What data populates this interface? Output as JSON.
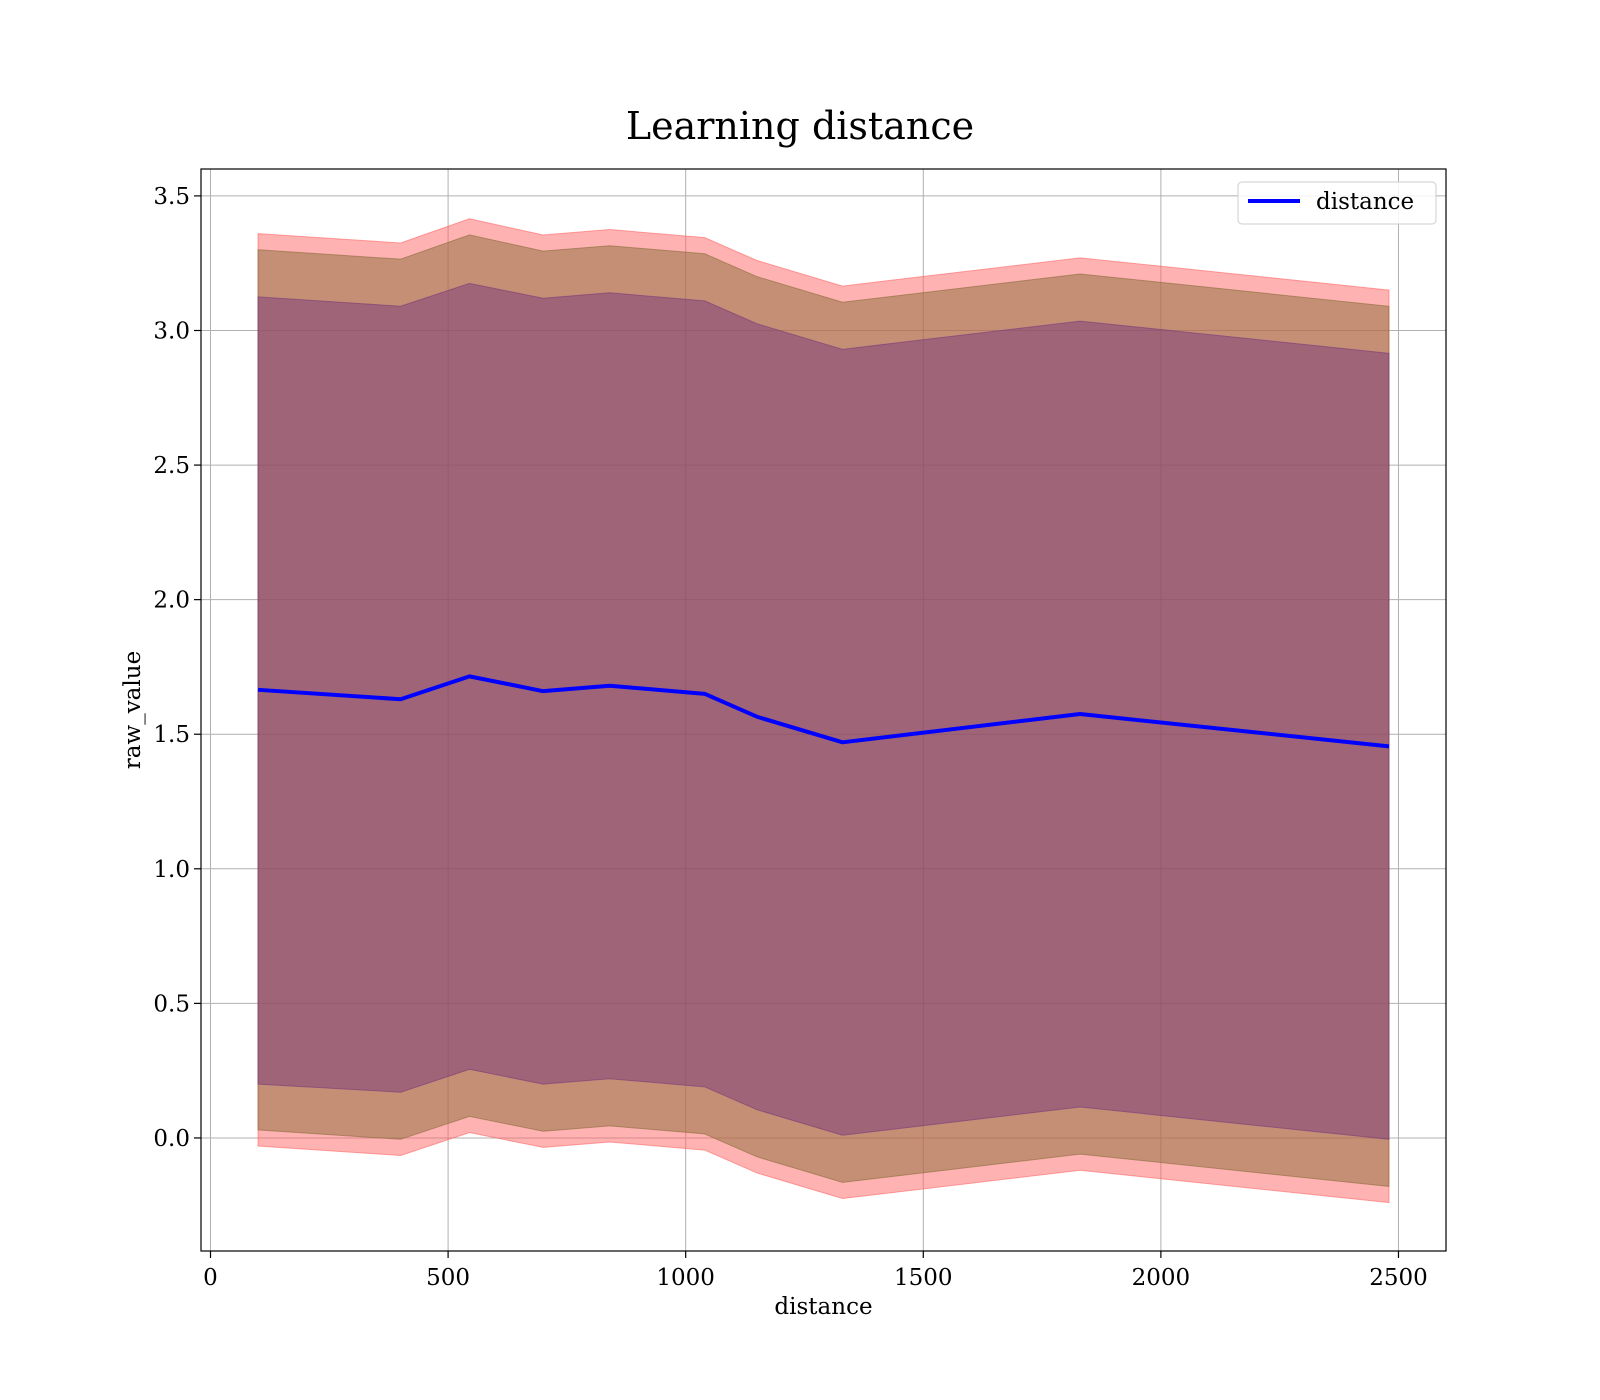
{
  "chart_data": {
    "type": "line",
    "title": "Learning distance",
    "xlabel": "distance",
    "ylabel": "raw_value",
    "xlim": [
      -20,
      2600
    ],
    "ylim": [
      -0.42,
      3.6
    ],
    "xticks": [
      0,
      500,
      1000,
      1500,
      2000,
      2500
    ],
    "xtick_labels": [
      "0",
      "500",
      "1000",
      "1500",
      "2000",
      "2500"
    ],
    "yticks": [
      0.0,
      0.5,
      1.0,
      1.5,
      2.0,
      2.5,
      3.0,
      3.5
    ],
    "ytick_labels": [
      "0.0",
      "0.5",
      "1.0",
      "1.5",
      "2.0",
      "2.5",
      "3.0",
      "3.5"
    ],
    "grid": true,
    "legend_position": "top-right",
    "x": [
      100,
      400,
      545,
      700,
      840,
      1040,
      1150,
      1330,
      1830,
      2480
    ],
    "series": [
      {
        "name": "distance",
        "color": "#0000ff",
        "values": [
          1.665,
          1.63,
          1.715,
          1.66,
          1.68,
          1.65,
          1.565,
          1.47,
          1.575,
          1.455
        ]
      }
    ],
    "bands": [
      {
        "color": "#ff6666",
        "opacity": 0.5,
        "upper": [
          3.36,
          3.325,
          3.415,
          3.355,
          3.375,
          3.345,
          3.26,
          3.165,
          3.27,
          3.15
        ],
        "lower": [
          -0.03,
          -0.065,
          0.02,
          -0.035,
          -0.015,
          -0.045,
          -0.13,
          -0.225,
          -0.12,
          -0.24
        ]
      },
      {
        "color": "#8b6b3a",
        "opacity": 0.5,
        "upper": [
          3.3,
          3.265,
          3.355,
          3.295,
          3.315,
          3.285,
          3.2,
          3.105,
          3.21,
          3.09
        ],
        "lower": [
          0.03,
          -0.005,
          0.08,
          0.025,
          0.045,
          0.015,
          -0.07,
          -0.165,
          -0.06,
          -0.18
        ]
      },
      {
        "color": "#7a3a7a",
        "opacity": 0.5,
        "upper": [
          3.125,
          3.09,
          3.175,
          3.12,
          3.14,
          3.11,
          3.025,
          2.93,
          3.035,
          2.915
        ],
        "lower": [
          0.2,
          0.17,
          0.255,
          0.2,
          0.22,
          0.19,
          0.105,
          0.01,
          0.115,
          -0.005
        ]
      }
    ]
  }
}
